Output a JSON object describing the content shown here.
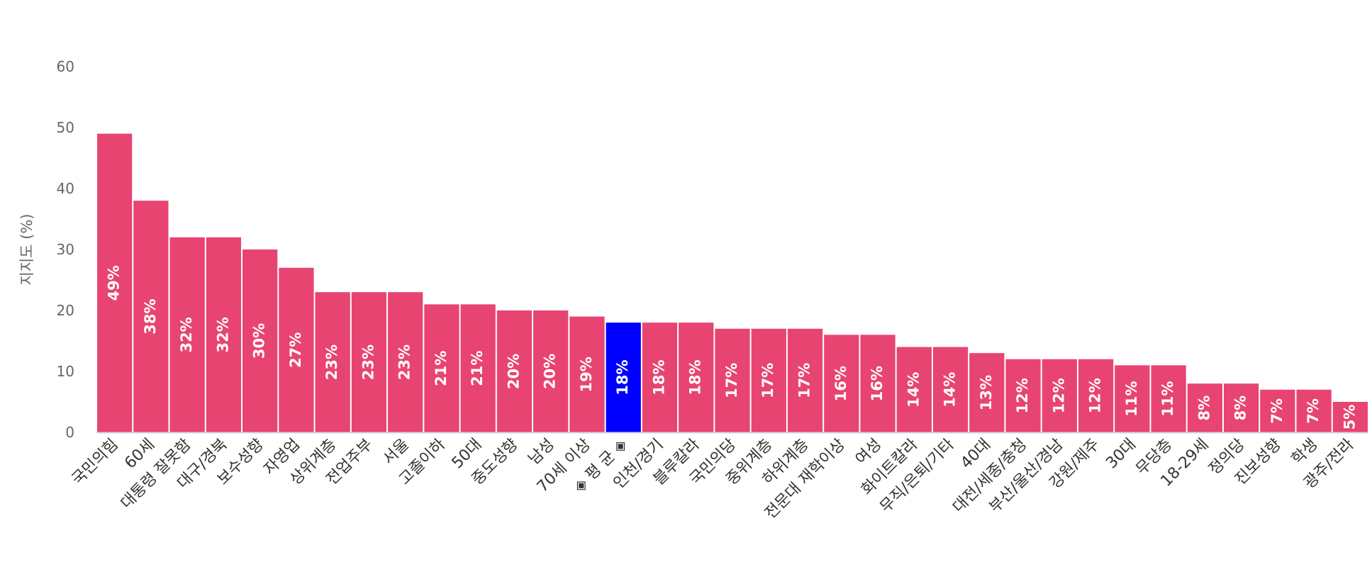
{
  "colors": {
    "bar": "#e84472",
    "highlight": "#0000ff",
    "axis": "#ccd6eb",
    "tick_text": "#666666",
    "label_text": "#333333"
  },
  "chart_data": {
    "type": "bar",
    "title": "",
    "xlabel": "",
    "ylabel": "지지도 (%)",
    "ylim": [
      0,
      60
    ],
    "yticks": [
      0,
      10,
      20,
      30,
      40,
      50,
      60
    ],
    "grid": false,
    "legend": "none",
    "highlight_category": "◈ 평 균 ◈",
    "categories": [
      "국민의힘",
      "60세",
      "대통령 잘못함",
      "대구/경북",
      "보수성향",
      "자영업",
      "상위계층",
      "전업주부",
      "서울",
      "고졸이하",
      "50대",
      "중도성향",
      "남성",
      "70세 이상",
      "◈ 평 균 ◈",
      "인천/경기",
      "블루칼라",
      "국민의당",
      "중위계층",
      "하위계층",
      "전문대 재학이상",
      "여성",
      "화이트칼라",
      "무직/은퇴/기타",
      "40대",
      "대전/세종/충청",
      "부산/울산/경남",
      "강원/제주",
      "30대",
      "무당층",
      "18-29세",
      "정의당",
      "진보성향",
      "학생",
      "광주/전라"
    ],
    "values": [
      49,
      38,
      32,
      32,
      30,
      27,
      23,
      23,
      23,
      21,
      21,
      20,
      20,
      19,
      18,
      18,
      18,
      17,
      17,
      17,
      16,
      16,
      14,
      14,
      13,
      12,
      12,
      12,
      11,
      11,
      8,
      8,
      7,
      7,
      5
    ],
    "data_labels": [
      "49%",
      "38%",
      "32%",
      "32%",
      "30%",
      "27%",
      "23%",
      "23%",
      "23%",
      "21%",
      "21%",
      "20%",
      "20%",
      "19%",
      "18%",
      "18%",
      "18%",
      "17%",
      "17%",
      "17%",
      "16%",
      "16%",
      "14%",
      "14%",
      "13%",
      "12%",
      "12%",
      "12%",
      "11%",
      "11%",
      "8%",
      "8%",
      "7%",
      "7%",
      "5%"
    ]
  }
}
